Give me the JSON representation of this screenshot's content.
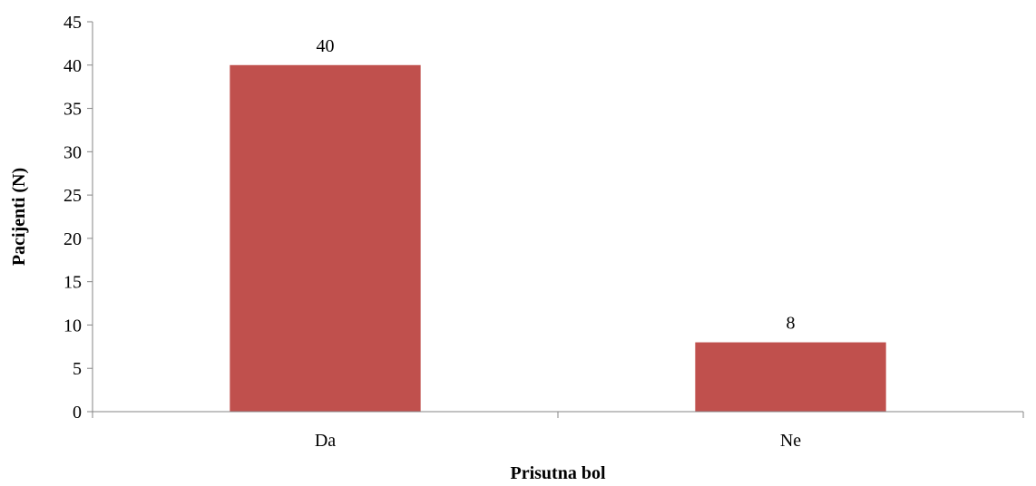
{
  "chart_data": {
    "type": "bar",
    "categories": [
      "Da",
      "Ne"
    ],
    "values": [
      40,
      8
    ],
    "data_labels": [
      "40",
      "8"
    ],
    "xlabel": "Prisutna bol",
    "ylabel": "Pacijenti (N)",
    "ylim": [
      0,
      45
    ],
    "y_ticks": [
      0,
      5,
      10,
      15,
      20,
      25,
      30,
      35,
      40,
      45
    ],
    "grid": false,
    "legend": "none",
    "bar_color": "#C0504D"
  }
}
